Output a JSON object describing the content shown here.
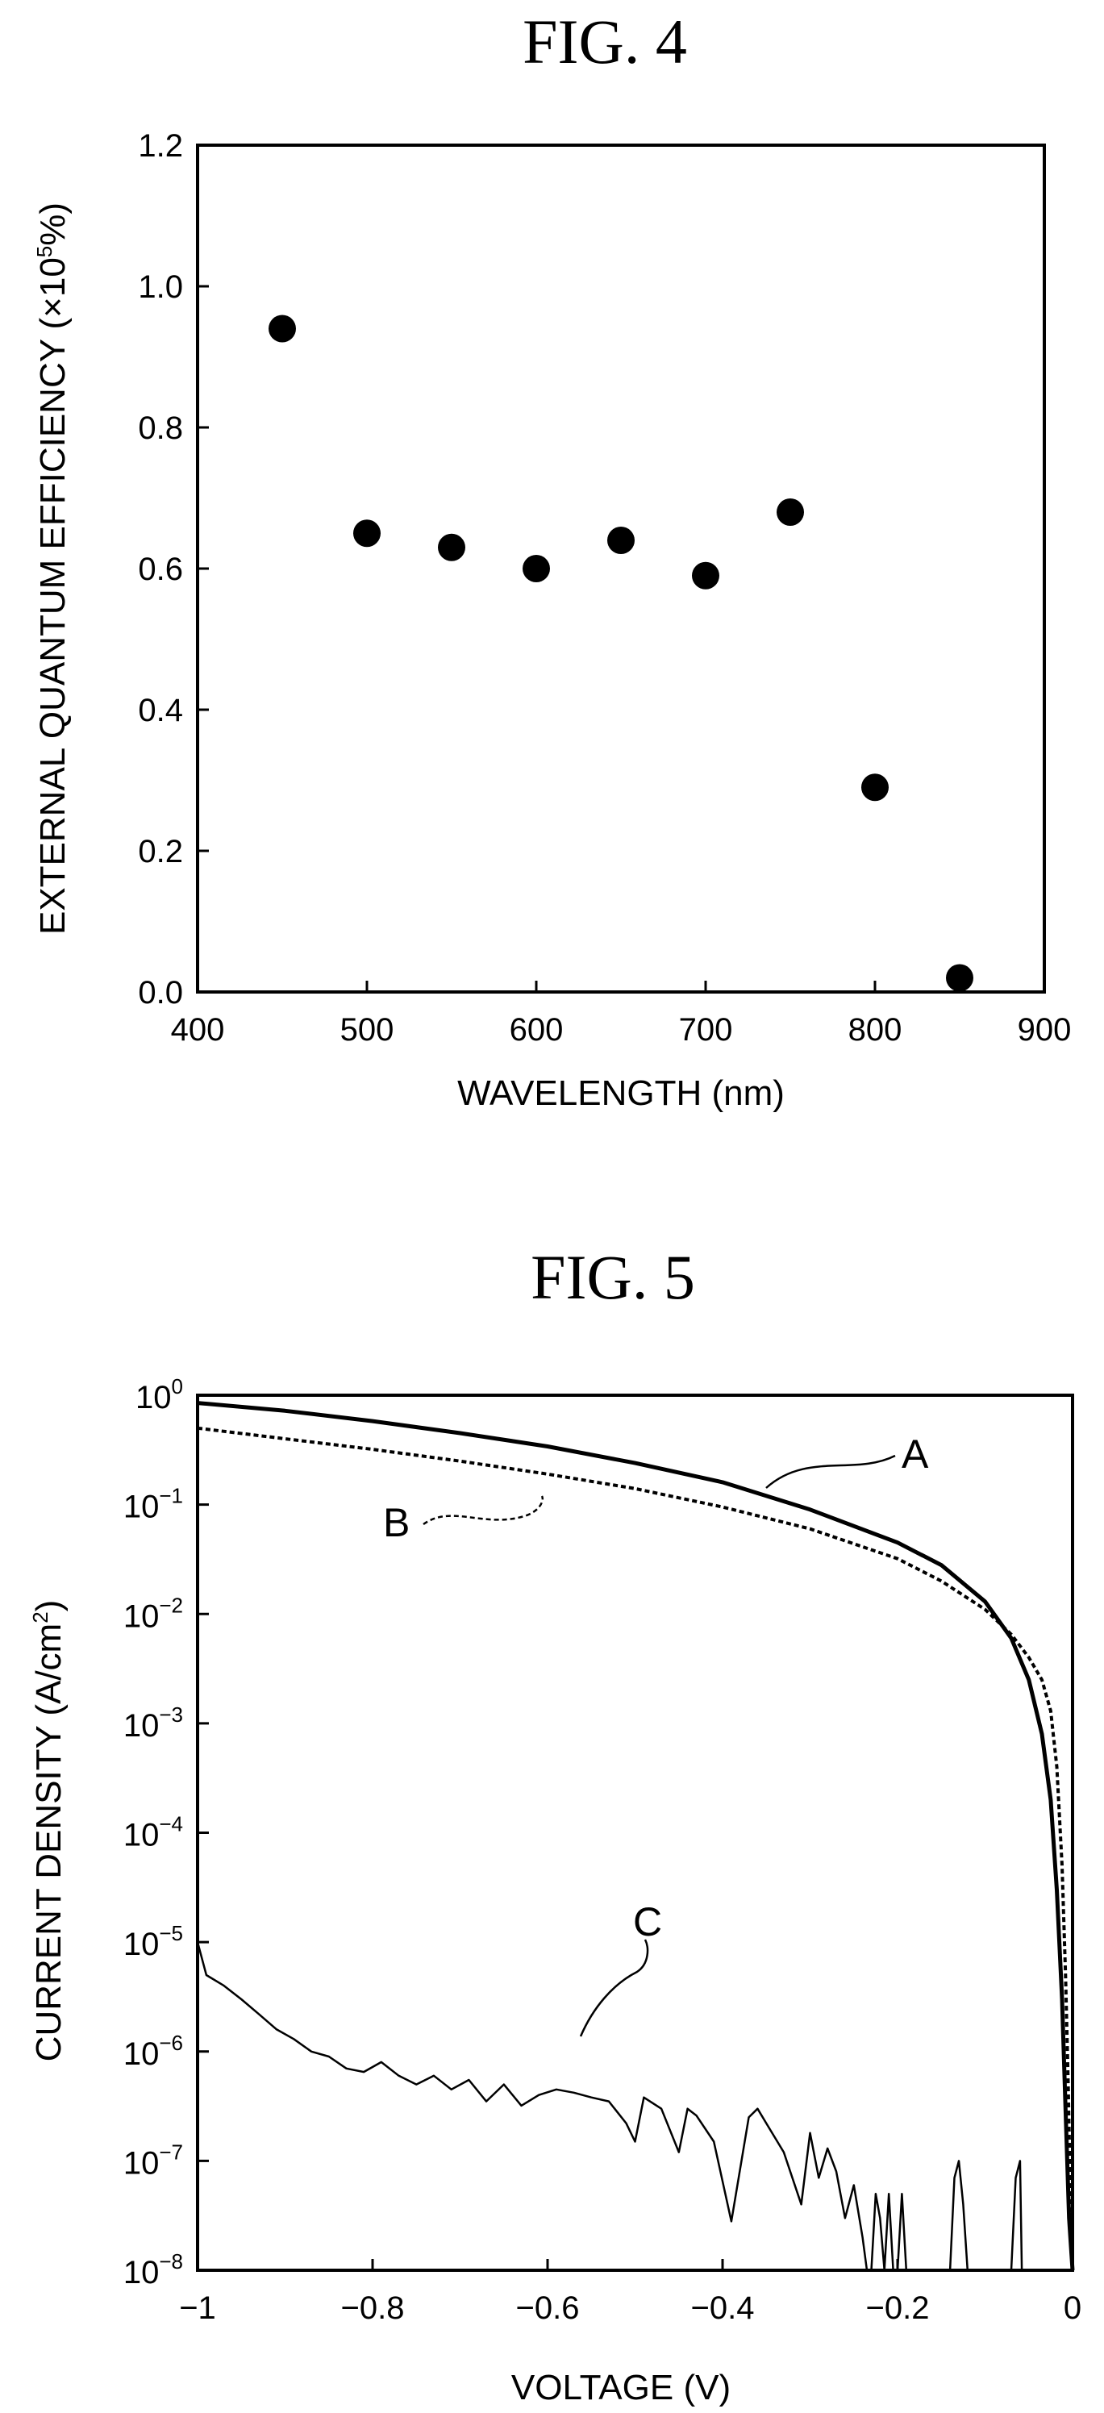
{
  "chart_data": [
    {
      "type": "scatter",
      "title": "FIG. 4",
      "xlabel": "WAVELENGTH (nm)",
      "ylabel": "EXTERNAL QUANTUM EFFICIENCY (×10⁵%)",
      "ylabel_main": "EXTERNAL QUANTUM EFFICIENCY (×10",
      "ylabel_sup": "5",
      "ylabel_end": "%)",
      "xlim": [
        400,
        900
      ],
      "ylim": [
        0.0,
        1.2
      ],
      "xticks": [
        "400",
        "500",
        "600",
        "700",
        "800",
        "900"
      ],
      "yticks": [
        "0.0",
        "0.2",
        "0.4",
        "0.6",
        "0.8",
        "1.0",
        "1.2"
      ],
      "grid": false,
      "x": [
        450,
        500,
        550,
        600,
        650,
        700,
        750,
        800,
        850
      ],
      "y": [
        0.94,
        0.65,
        0.63,
        0.6,
        0.64,
        0.59,
        0.68,
        0.29,
        0.02
      ]
    },
    {
      "type": "line",
      "title": "FIG. 5",
      "xlabel": "VOLTAGE (V)",
      "ylabel": "CURRENT DENSITY (A/cm²)",
      "ylabel_main": "CURRENT DENSITY (A/cm",
      "ylabel_sup": "2",
      "ylabel_end": ")",
      "xlim": [
        -1,
        0
      ],
      "ylim": [
        1e-08,
        1
      ],
      "yscale": "log",
      "xticks": [
        "−1",
        "−0.8",
        "−0.6",
        "−0.4",
        "−0.2",
        "0"
      ],
      "yticks": [
        "10",
        "10",
        "10",
        "10",
        "10",
        "10",
        "10",
        "10",
        "10"
      ],
      "ytick_exponents": [
        "−8",
        "−7",
        "−6",
        "−5",
        "−4",
        "−3",
        "−2",
        "−1",
        "0"
      ],
      "grid": false,
      "series": [
        {
          "name": "A",
          "style": "solid",
          "x": [
            -1.0,
            -0.9,
            -0.8,
            -0.7,
            -0.6,
            -0.5,
            -0.4,
            -0.3,
            -0.2,
            -0.15,
            -0.1,
            -0.07,
            -0.05,
            -0.035,
            -0.025,
            -0.018,
            -0.012,
            -0.008,
            -0.004,
            0.0
          ],
          "y": [
            0.85,
            0.72,
            0.58,
            0.45,
            0.34,
            0.24,
            0.16,
            0.09,
            0.045,
            0.028,
            0.013,
            0.006,
            0.0025,
            0.0008,
            0.0002,
            3e-05,
            3e-06,
            3e-07,
            3e-08,
            1e-08
          ]
        },
        {
          "name": "B",
          "style": "dashed",
          "x": [
            -1.0,
            -0.9,
            -0.8,
            -0.7,
            -0.6,
            -0.5,
            -0.4,
            -0.3,
            -0.2,
            -0.15,
            -0.1,
            -0.07,
            -0.05,
            -0.035,
            -0.025,
            -0.018,
            -0.012,
            -0.008,
            -0.005,
            -0.002,
            0.0
          ],
          "y": [
            0.5,
            0.4,
            0.32,
            0.25,
            0.19,
            0.14,
            0.095,
            0.06,
            0.032,
            0.02,
            0.011,
            0.0065,
            0.004,
            0.0025,
            0.0013,
            0.0004,
            5e-05,
            5e-06,
            5e-07,
            3e-08,
            1e-08
          ]
        },
        {
          "name": "C",
          "style": "solid-thin",
          "x": [
            -1.0,
            -0.99,
            -0.97,
            -0.95,
            -0.93,
            -0.91,
            -0.89,
            -0.87,
            -0.85,
            -0.83,
            -0.81,
            -0.79,
            -0.77,
            -0.75,
            -0.73,
            -0.71,
            -0.69,
            -0.67,
            -0.65,
            -0.63,
            -0.61,
            -0.59,
            -0.57,
            -0.55,
            -0.53,
            -0.51,
            -0.5,
            -0.49,
            -0.47,
            -0.45,
            -0.44,
            -0.43,
            -0.41,
            -0.39,
            -0.37,
            -0.36,
            -0.35,
            -0.33,
            -0.31,
            -0.3,
            -0.29,
            -0.28,
            -0.27,
            -0.26,
            -0.25,
            -0.24,
            -0.235,
            -0.23,
            -0.225,
            -0.22,
            -0.215,
            -0.21,
            -0.205,
            -0.2,
            -0.195,
            -0.19,
            -0.188,
            -0.185,
            -0.14,
            -0.135,
            -0.13,
            -0.125,
            -0.12,
            -0.118,
            -0.07,
            -0.065,
            -0.06,
            -0.058
          ],
          "y": [
            1e-05,
            5e-06,
            4e-06,
            3e-06,
            2.2e-06,
            1.6e-06,
            1.3e-06,
            1e-06,
            9e-07,
            7e-07,
            6.5e-07,
            8e-07,
            6e-07,
            5e-07,
            6e-07,
            4.5e-07,
            5.5e-07,
            3.5e-07,
            5e-07,
            3.2e-07,
            4e-07,
            4.5e-07,
            4.2e-07,
            3.8e-07,
            3.5e-07,
            2.2e-07,
            1.5e-07,
            3.8e-07,
            3e-07,
            1.2e-07,
            3e-07,
            2.6e-07,
            1.5e-07,
            2.8e-08,
            2.5e-07,
            3e-07,
            2.2e-07,
            1.2e-07,
            4e-08,
            1.8e-07,
            7e-08,
            1.3e-07,
            8e-08,
            3e-08,
            6e-08,
            2e-08,
            1e-08,
            1e-08,
            5e-08,
            3e-08,
            1e-08,
            5e-08,
            1e-08,
            1e-08,
            5e-08,
            1e-08,
            1e-08,
            1e-08,
            1e-08,
            7e-08,
            1e-07,
            4e-08,
            1e-08,
            1e-08,
            1e-08,
            7e-08,
            1e-07,
            1e-08
          ]
        }
      ]
    }
  ]
}
